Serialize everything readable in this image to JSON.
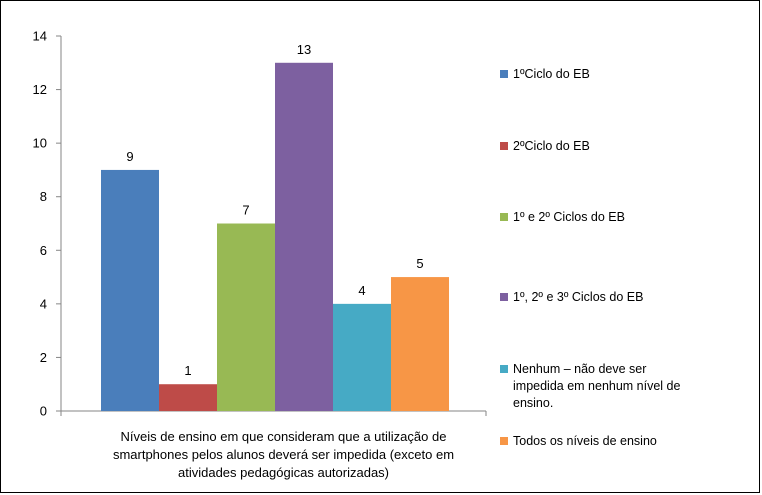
{
  "chart_data": {
    "type": "bar",
    "title": "",
    "ylabel": "",
    "ylim": [
      0,
      14
    ],
    "yticks": [
      0,
      2,
      4,
      6,
      8,
      10,
      12,
      14
    ],
    "grid": false,
    "legend_position": "right",
    "x_caption_lines": [
      "Níveis de ensino em que consideram que a utilização de",
      "smartphones pelos alunos deverá ser impedida (exceto em",
      "atividades pedagógicas autorizadas)"
    ],
    "series": [
      {
        "name": "1ºCiclo do EB",
        "value": 9,
        "color": "#4a7ebb",
        "legend_lines": [
          "1ºCiclo do EB"
        ]
      },
      {
        "name": "2ºCiclo do EB",
        "value": 1,
        "color": "#be4b48",
        "legend_lines": [
          "2ºCiclo do EB"
        ]
      },
      {
        "name": "1º e 2º Ciclos do EB",
        "value": 7,
        "color": "#98b954",
        "legend_lines": [
          "1º e 2º Ciclos do EB"
        ]
      },
      {
        "name": "1º, 2º e 3º Ciclos do EB",
        "value": 13,
        "color": "#7d60a0",
        "legend_lines": [
          "1º, 2º e 3º Ciclos do EB"
        ]
      },
      {
        "name": "Nenhum – não deve ser impedida em nenhum nível de ensino.",
        "value": 4,
        "color": "#46aac5",
        "legend_lines": [
          "Nenhum – não deve ser",
          "impedida em nenhum nível de",
          "ensino."
        ]
      },
      {
        "name": "Todos os níveis de ensino",
        "value": 5,
        "color": "#f79646",
        "legend_lines": [
          "Todos os níveis de ensino"
        ]
      }
    ]
  }
}
